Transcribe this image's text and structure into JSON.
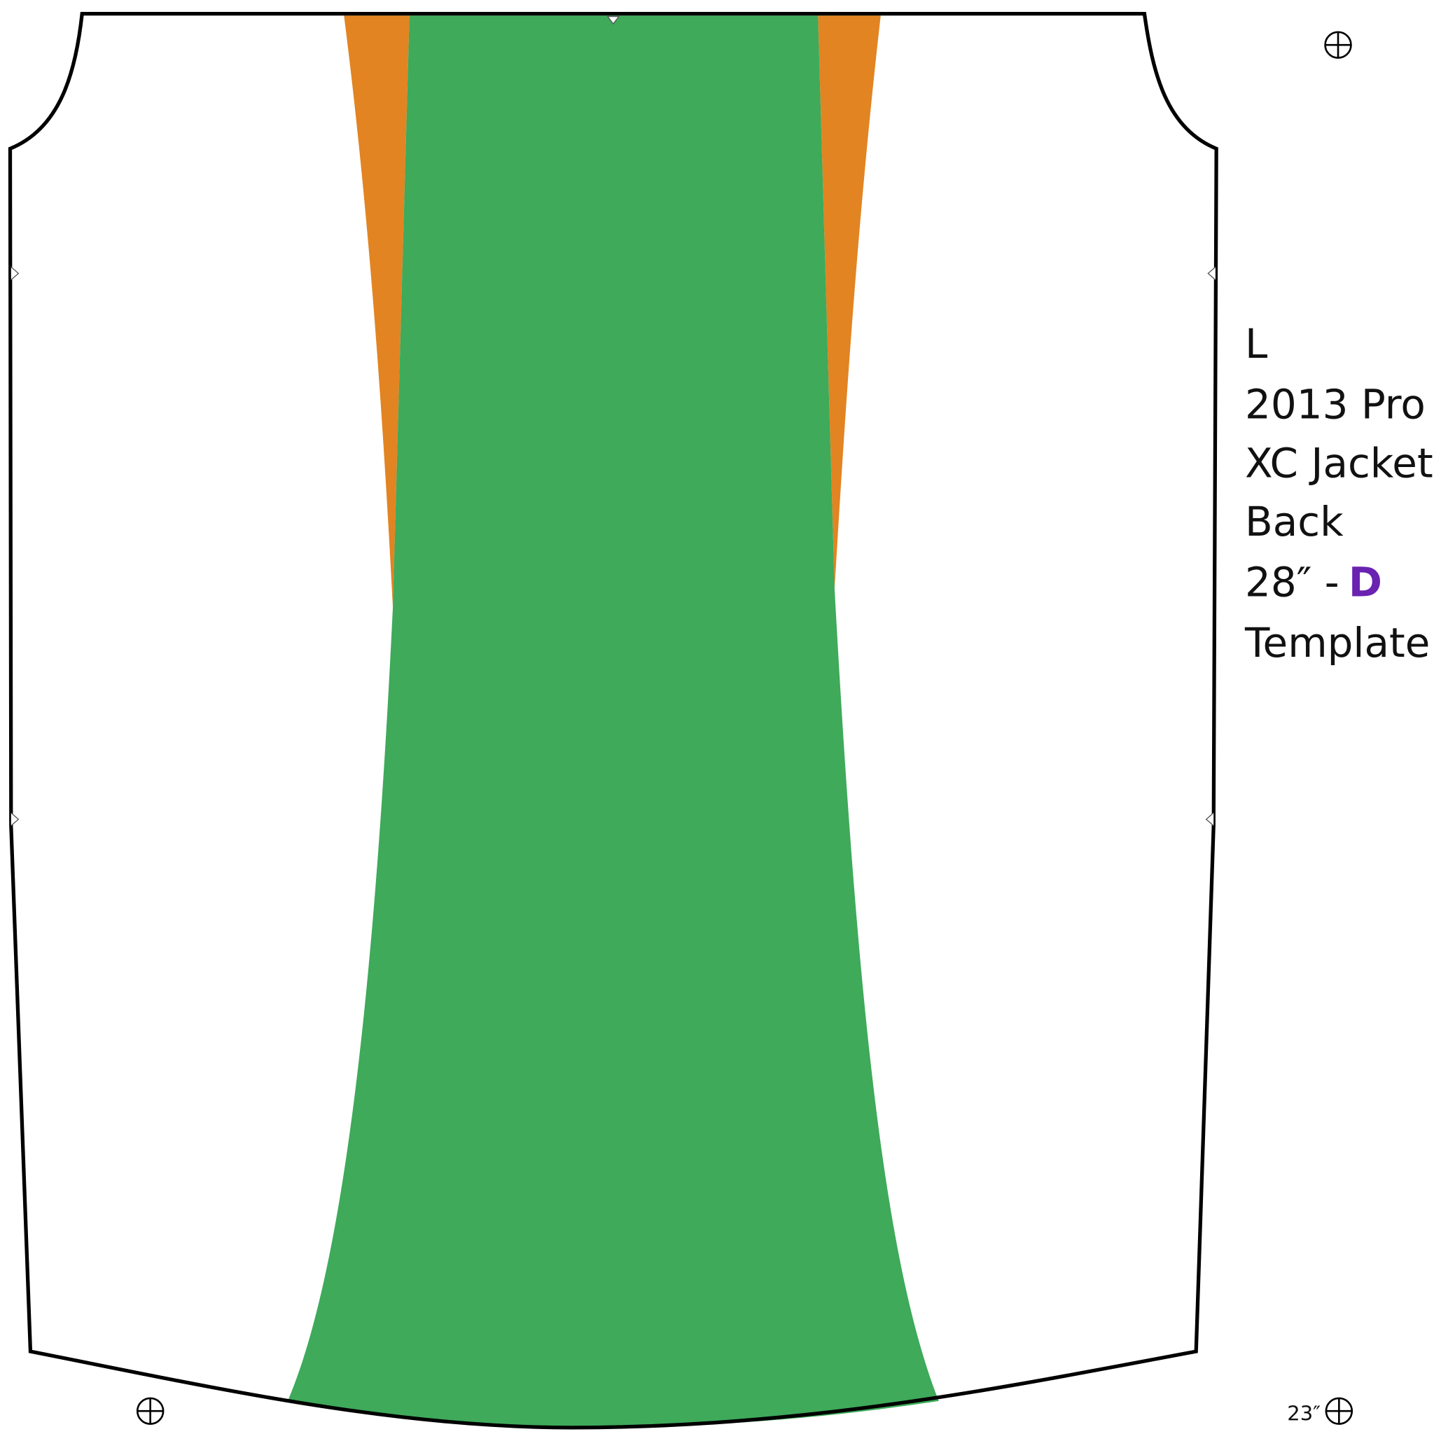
{
  "label": {
    "lines": [
      "L",
      "2013 Pro",
      "XC Jacket",
      "Back"
    ],
    "size": "28″ -",
    "code": "D",
    "last": "Template"
  },
  "measure": "23″"
}
